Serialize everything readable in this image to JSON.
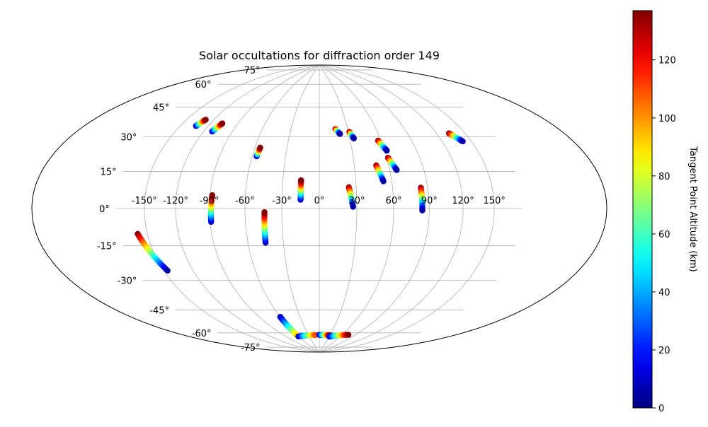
{
  "chart_data": {
    "type": "scatter",
    "projection": "aitoff-hammer (mollweide-like)",
    "title": "Solar occultations for diffraction order 149",
    "xlabel": "",
    "ylabel": "",
    "x_tick_labels": [
      "-150°",
      "-120°",
      "-90°",
      "-60°",
      "-30°",
      "0°",
      "30°",
      "60°",
      "90°",
      "120°",
      "150°"
    ],
    "y_tick_labels": [
      "75°",
      "60°",
      "45°",
      "30°",
      "15°",
      "0°",
      "-15°",
      "-30°",
      "-45°",
      "-60°",
      "-75°"
    ],
    "grid": true,
    "colorbar": {
      "label": "Tangent Point Altitude (km)",
      "colormap": "jet",
      "range": [
        0,
        137
      ],
      "tick_labels": [
        "0",
        "20",
        "40",
        "60",
        "80",
        "100",
        "120"
      ]
    },
    "tracks": [
      {
        "lon": [
          -133,
          -129
        ],
        "lat": [
          41,
          45
        ],
        "alt": [
          5,
          137
        ]
      },
      {
        "lon": [
          -111,
          -107
        ],
        "lat": [
          40,
          45
        ],
        "alt": [
          5,
          137
        ]
      },
      {
        "lon": [
          -56,
          -55
        ],
        "lat": [
          29,
          34
        ],
        "alt": [
          5,
          137
        ]
      },
      {
        "lon": [
          -15,
          -15
        ],
        "lat": [
          5,
          16
        ],
        "alt": [
          5,
          137
        ]
      },
      {
        "lon": [
          -89,
          -88
        ],
        "lat": [
          -7,
          7
        ],
        "alt": [
          5,
          137
        ]
      },
      {
        "lon": [
          -45,
          -44
        ],
        "lat": [
          -19,
          -2
        ],
        "alt": [
          5,
          137
        ]
      },
      {
        "lon": [
          -160,
          -146
        ],
        "lat": [
          -11,
          -29
        ],
        "alt": [
          137,
          5
        ]
      },
      {
        "lon": [
          17,
          21
        ],
        "lat": [
          46,
          43
        ],
        "alt": [
          137,
          5
        ]
      },
      {
        "lon": [
          31,
          34
        ],
        "lat": [
          44,
          40
        ],
        "alt": [
          137,
          5
        ]
      },
      {
        "lon": [
          49,
          53
        ],
        "lat": [
          24,
          15
        ],
        "alt": [
          137,
          5
        ]
      },
      {
        "lon": [
          57,
          62
        ],
        "lat": [
          38,
          32
        ],
        "alt": [
          137,
          5
        ]
      },
      {
        "lon": [
          61,
          66
        ],
        "lat": [
          28,
          21
        ],
        "alt": [
          137,
          5
        ]
      },
      {
        "lon": [
          24,
          27
        ],
        "lat": [
          12,
          1
        ],
        "alt": [
          137,
          5
        ]
      },
      {
        "lon": [
          84,
          84
        ],
        "lat": [
          11,
          -1
        ],
        "alt": [
          137,
          5
        ]
      },
      {
        "lon": [
          133,
          141
        ],
        "lat": [
          37,
          32
        ],
        "alt": [
          137,
          5
        ]
      },
      {
        "lon": [
          -60,
          -60
        ],
        "lat": [
          -63,
          -76
        ],
        "alt": [
          5,
          90
        ]
      },
      {
        "lon": [
          -60,
          -10
        ],
        "lat": [
          -77,
          -77
        ],
        "alt": [
          5,
          110
        ]
      },
      {
        "lon": [
          0,
          30
        ],
        "lat": [
          -77,
          -77
        ],
        "alt": [
          5,
          137
        ]
      },
      {
        "lon": [
          30,
          75
        ],
        "lat": [
          -78,
          -75
        ],
        "alt": [
          5,
          137
        ]
      }
    ]
  }
}
